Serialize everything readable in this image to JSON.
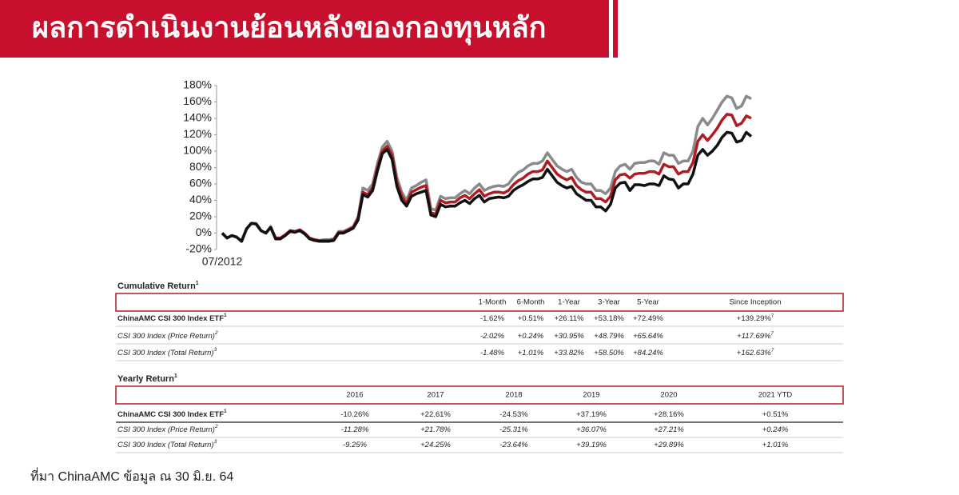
{
  "header": {
    "title": "ผลการดำเนินงานย้อนหลังของกองทุนหลัก"
  },
  "chart_data": {
    "type": "line",
    "categories": [
      "07/2012",
      null,
      null,
      null,
      null,
      null,
      null,
      null,
      null,
      null,
      null,
      null,
      null,
      null,
      null,
      null,
      null,
      null,
      null,
      null,
      null,
      null,
      null,
      null,
      null,
      null,
      null,
      null,
      null,
      null,
      null,
      null,
      null,
      null,
      null,
      null,
      null,
      null,
      null,
      null,
      null,
      null,
      null,
      null,
      null,
      null,
      null,
      null,
      null,
      null,
      null,
      null,
      null,
      null,
      null,
      null,
      null,
      null,
      null,
      null,
      null,
      null,
      null,
      null,
      null,
      null,
      null,
      null,
      null,
      null,
      null,
      null,
      null,
      null,
      null,
      null,
      null,
      null,
      null,
      null,
      null,
      null,
      null,
      null,
      null,
      null,
      null,
      null,
      null,
      null,
      null,
      null,
      null,
      null,
      null,
      null,
      null,
      null,
      null,
      null,
      null,
      null,
      null,
      null,
      null,
      null,
      null,
      null,
      null,
      null
    ],
    "series": [
      {
        "color": "#8a8a8a",
        "values": [
          0,
          -6,
          -3,
          -5,
          -10,
          5,
          12,
          12,
          3,
          0,
          8,
          -6,
          -6,
          -2,
          3,
          2,
          4,
          0,
          -6,
          -8,
          -9,
          -8,
          -8,
          -7,
          2,
          2,
          5,
          8,
          20,
          55,
          52,
          60,
          85,
          105,
          112,
          100,
          68,
          50,
          40,
          55,
          58,
          62,
          65,
          30,
          28,
          45,
          42,
          43,
          43,
          48,
          52,
          48,
          55,
          60,
          52,
          55,
          57,
          58,
          57,
          60,
          68,
          74,
          77,
          82,
          85,
          85,
          88,
          98,
          90,
          82,
          78,
          75,
          78,
          68,
          62,
          60,
          60,
          52,
          52,
          48,
          55,
          75,
          82,
          84,
          78,
          85,
          86,
          86,
          88,
          88,
          84,
          98,
          95,
          95,
          85,
          88,
          88,
          100,
          130,
          140,
          132,
          140,
          150,
          160,
          167,
          165,
          152,
          155,
          167,
          164
        ]
      },
      {
        "color": "#b01c22",
        "values": [
          0,
          -6,
          -3,
          -5,
          -10,
          5,
          12,
          11,
          3,
          0,
          7,
          -6,
          -6,
          -2,
          3,
          2,
          4,
          0,
          -6,
          -8,
          -9,
          -9,
          -9,
          -8,
          1,
          1,
          4,
          7,
          18,
          50,
          47,
          55,
          80,
          100,
          106,
          95,
          62,
          45,
          36,
          50,
          53,
          56,
          58,
          25,
          23,
          40,
          37,
          38,
          38,
          43,
          46,
          42,
          48,
          53,
          45,
          48,
          50,
          50,
          49,
          52,
          59,
          64,
          67,
          72,
          75,
          75,
          77,
          88,
          80,
          72,
          68,
          65,
          68,
          58,
          53,
          50,
          50,
          42,
          42,
          38,
          45,
          65,
          71,
          72,
          67,
          72,
          73,
          73,
          75,
          75,
          72,
          84,
          81,
          81,
          72,
          75,
          75,
          86,
          112,
          120,
          113,
          120,
          128,
          138,
          145,
          144,
          131,
          134,
          143,
          140
        ]
      },
      {
        "color": "#111111",
        "values": [
          0,
          -6,
          -3,
          -5,
          -10,
          5,
          12,
          11,
          3,
          0,
          7,
          -7,
          -7,
          -3,
          2,
          1,
          3,
          -1,
          -7,
          -9,
          -10,
          -10,
          -10,
          -9,
          0,
          0,
          3,
          6,
          16,
          47,
          44,
          52,
          76,
          97,
          102,
          90,
          57,
          40,
          33,
          45,
          48,
          50,
          52,
          22,
          20,
          35,
          32,
          33,
          33,
          37,
          40,
          36,
          42,
          46,
          38,
          42,
          43,
          44,
          43,
          45,
          52,
          56,
          59,
          63,
          66,
          66,
          68,
          78,
          70,
          62,
          58,
          55,
          57,
          48,
          44,
          40,
          40,
          32,
          32,
          27,
          35,
          55,
          61,
          62,
          52,
          59,
          59,
          58,
          60,
          60,
          58,
          70,
          66,
          65,
          55,
          60,
          60,
          72,
          95,
          102,
          95,
          100,
          107,
          117,
          123,
          122,
          111,
          113,
          123,
          118
        ]
      }
    ],
    "ylim": [
      -20,
      180
    ],
    "yticks": [
      {
        "value": -20,
        "label": "-20%"
      },
      {
        "value": 0,
        "label": "0%"
      },
      {
        "value": 20,
        "label": "20%"
      },
      {
        "value": 40,
        "label": "40%"
      },
      {
        "value": 60,
        "label": "60%"
      },
      {
        "value": 80,
        "label": "80%"
      },
      {
        "value": 100,
        "label": "100%"
      },
      {
        "value": 120,
        "label": "120%"
      },
      {
        "value": 140,
        "label": "140%"
      },
      {
        "value": 160,
        "label": "160%"
      },
      {
        "value": 180,
        "label": "180%"
      }
    ],
    "grid": false
  },
  "cumulative": {
    "title": "Cumulative Return",
    "note": "1",
    "headers": [
      "1-Month",
      "6-Month",
      "1-Year",
      "3-Year",
      "5-Year",
      "Since Inception"
    ],
    "rows": [
      {
        "name": "ChinaAMC CSI 300 Index ETF",
        "note": "1",
        "values": [
          "-1.62%",
          "+0.51%",
          "+26.11%",
          "+53.18%",
          "+72.49%",
          "+139.29%"
        ],
        "value_note": "7"
      },
      {
        "name": "CSI 300 Index (Price Return)",
        "note": "2",
        "values": [
          "-2.02%",
          "+0.24%",
          "+30.95%",
          "+48.79%",
          "+65.64%",
          "+117.69%"
        ],
        "value_note": "7"
      },
      {
        "name": "CSI 300 Index (Total Return)",
        "note": "3",
        "values": [
          "-1.48%",
          "+1.01%",
          "+33.82%",
          "+58.50%",
          "+84.24%",
          "+162.63%"
        ],
        "value_note": "7"
      }
    ]
  },
  "yearly": {
    "title": "Yearly Return",
    "note": "1",
    "headers": [
      "2016",
      "2017",
      "2018",
      "2019",
      "2020",
      "2021 YTD"
    ],
    "rows": [
      {
        "name": "ChinaAMC CSI 300 Index ETF",
        "note": "1",
        "values": [
          "-10.26%",
          "+22.61%",
          "-24.53%",
          "+37.19%",
          "+28.16%",
          "+0.51%"
        ]
      },
      {
        "name": "CSI 300 Index (Price Return)",
        "note": "2",
        "values": [
          "-11.28%",
          "+21.78%",
          "-25.31%",
          "+36.07%",
          "+27.21%",
          "+0.24%"
        ]
      },
      {
        "name": "CSI 300 Index (Total Return)",
        "note": "3",
        "values": [
          "-9.25%",
          "+24.25%",
          "-23.64%",
          "+39.19%",
          "+29.89%",
          "+1.01%"
        ]
      }
    ]
  },
  "footer": {
    "source": "ที่มา ChinaAMC ข้อมูล ณ 30 มิ.ย. 64"
  }
}
